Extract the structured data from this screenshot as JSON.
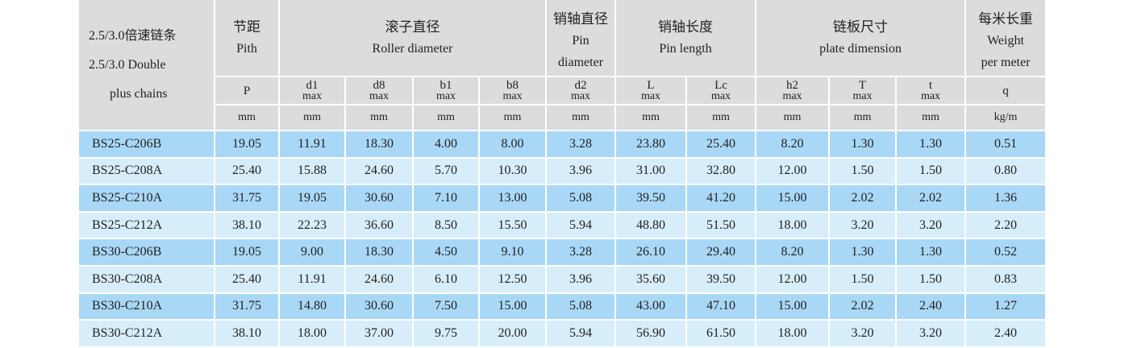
{
  "header": {
    "model": [
      "2.5/3.0倍速链条",
      "2.5/3.0 Double",
      "plus chains"
    ],
    "groups": [
      {
        "cn": "节距",
        "en": [
          "Pith"
        ]
      },
      {
        "cn": "滚子直径",
        "en": [
          "Roller diameter"
        ]
      },
      {
        "cn": "销轴直径",
        "en": [
          "Pin",
          "diameter"
        ]
      },
      {
        "cn": "销轴长度",
        "en": [
          "Pin length"
        ]
      },
      {
        "cn": "链板尺寸",
        "en": [
          "plate dimension"
        ]
      },
      {
        "cn": "每米长重",
        "en": [
          "Weight",
          "per meter"
        ]
      }
    ],
    "symbols": [
      {
        "sym": "P",
        "sub": ""
      },
      {
        "sym": "d1",
        "sub": "max"
      },
      {
        "sym": "d8",
        "sub": "max"
      },
      {
        "sym": "b1",
        "sub": "max"
      },
      {
        "sym": "b8",
        "sub": "max"
      },
      {
        "sym": "d2",
        "sub": "max"
      },
      {
        "sym": "L",
        "sub": "max"
      },
      {
        "sym": "Lc",
        "sub": "max"
      },
      {
        "sym": "h2",
        "sub": "max"
      },
      {
        "sym": "T",
        "sub": "max"
      },
      {
        "sym": "t",
        "sub": "max"
      },
      {
        "sym": "q",
        "sub": ""
      }
    ],
    "units": [
      "mm",
      "mm",
      "mm",
      "mm",
      "mm",
      "mm",
      "mm",
      "mm",
      "mm",
      "mm",
      "mm",
      "kg/m"
    ]
  },
  "rows": [
    [
      "BS25-C206B",
      "19.05",
      "11.91",
      "18.30",
      "4.00",
      "8.00",
      "3.28",
      "23.80",
      "25.40",
      "8.20",
      "1.30",
      "1.30",
      "0.51"
    ],
    [
      "BS25-C208A",
      "25.40",
      "15.88",
      "24.60",
      "5.70",
      "10.30",
      "3.96",
      "31.00",
      "32.80",
      "12.00",
      "1.50",
      "1.50",
      "0.80"
    ],
    [
      "BS25-C210A",
      "31.75",
      "19.05",
      "30.60",
      "7.10",
      "13.00",
      "5.08",
      "39.50",
      "41.20",
      "15.00",
      "2.02",
      "2.02",
      "1.36"
    ],
    [
      "BS25-C212A",
      "38.10",
      "22.23",
      "36.60",
      "8.50",
      "15.50",
      "5.94",
      "48.80",
      "51.50",
      "18.00",
      "3.20",
      "3.20",
      "2.20"
    ],
    [
      "BS30-C206B",
      "19.05",
      "9.00",
      "18.30",
      "4.50",
      "9.10",
      "3.28",
      "26.10",
      "29.40",
      "8.20",
      "1.30",
      "1.30",
      "0.52"
    ],
    [
      "BS30-C208A",
      "25.40",
      "11.91",
      "24.60",
      "6.10",
      "12.50",
      "3.96",
      "35.60",
      "39.50",
      "12.00",
      "1.50",
      "1.50",
      "0.83"
    ],
    [
      "BS30-C210A",
      "31.75",
      "14.80",
      "30.60",
      "7.50",
      "15.00",
      "5.08",
      "43.00",
      "47.10",
      "15.00",
      "2.02",
      "2.40",
      "1.27"
    ],
    [
      "BS30-C212A",
      "38.10",
      "18.00",
      "37.00",
      "9.75",
      "20.00",
      "5.94",
      "56.90",
      "61.50",
      "18.00",
      "3.20",
      "3.20",
      "2.40"
    ]
  ],
  "colors": {
    "header": "#dcdcdc",
    "row_dark": "#a9d8f7",
    "row_light": "#d7eefa"
  }
}
